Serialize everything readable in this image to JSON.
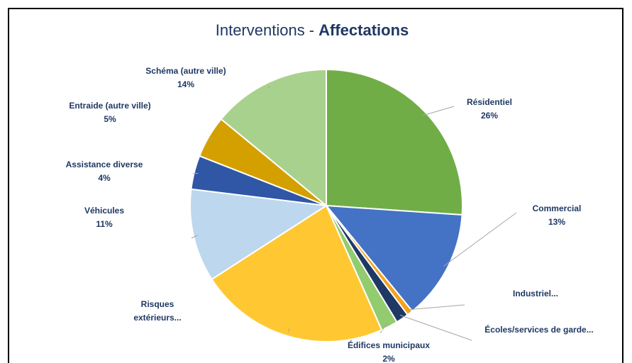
{
  "chart_data": {
    "type": "pie",
    "title": {
      "prefix": "Interventions -",
      "emphasis": "Affectations"
    },
    "categories": [
      "Résidentiel",
      "Commercial",
      "Industriel...",
      "Écoles/services de garde...",
      "Édifices municipaux",
      "Risques extérieurs...",
      "Véhicules",
      "Assistance diverse",
      "Entraide (autre ville)",
      "Schéma (autre ville)"
    ],
    "values": [
      26,
      13,
      0.7,
      1.5,
      2,
      22.5,
      11,
      4,
      5,
      14
    ],
    "value_labels": [
      "26%",
      "13%",
      null,
      null,
      "2%",
      null,
      "11%",
      "4%",
      "5%",
      "14%"
    ],
    "colors": [
      "#70ad47",
      "#4472c4",
      "#f4a21e",
      "#203864",
      "#92cc6e",
      "#ffc833",
      "#bdd7ee",
      "#2f57a5",
      "#d4a000",
      "#a9d18e"
    ]
  }
}
